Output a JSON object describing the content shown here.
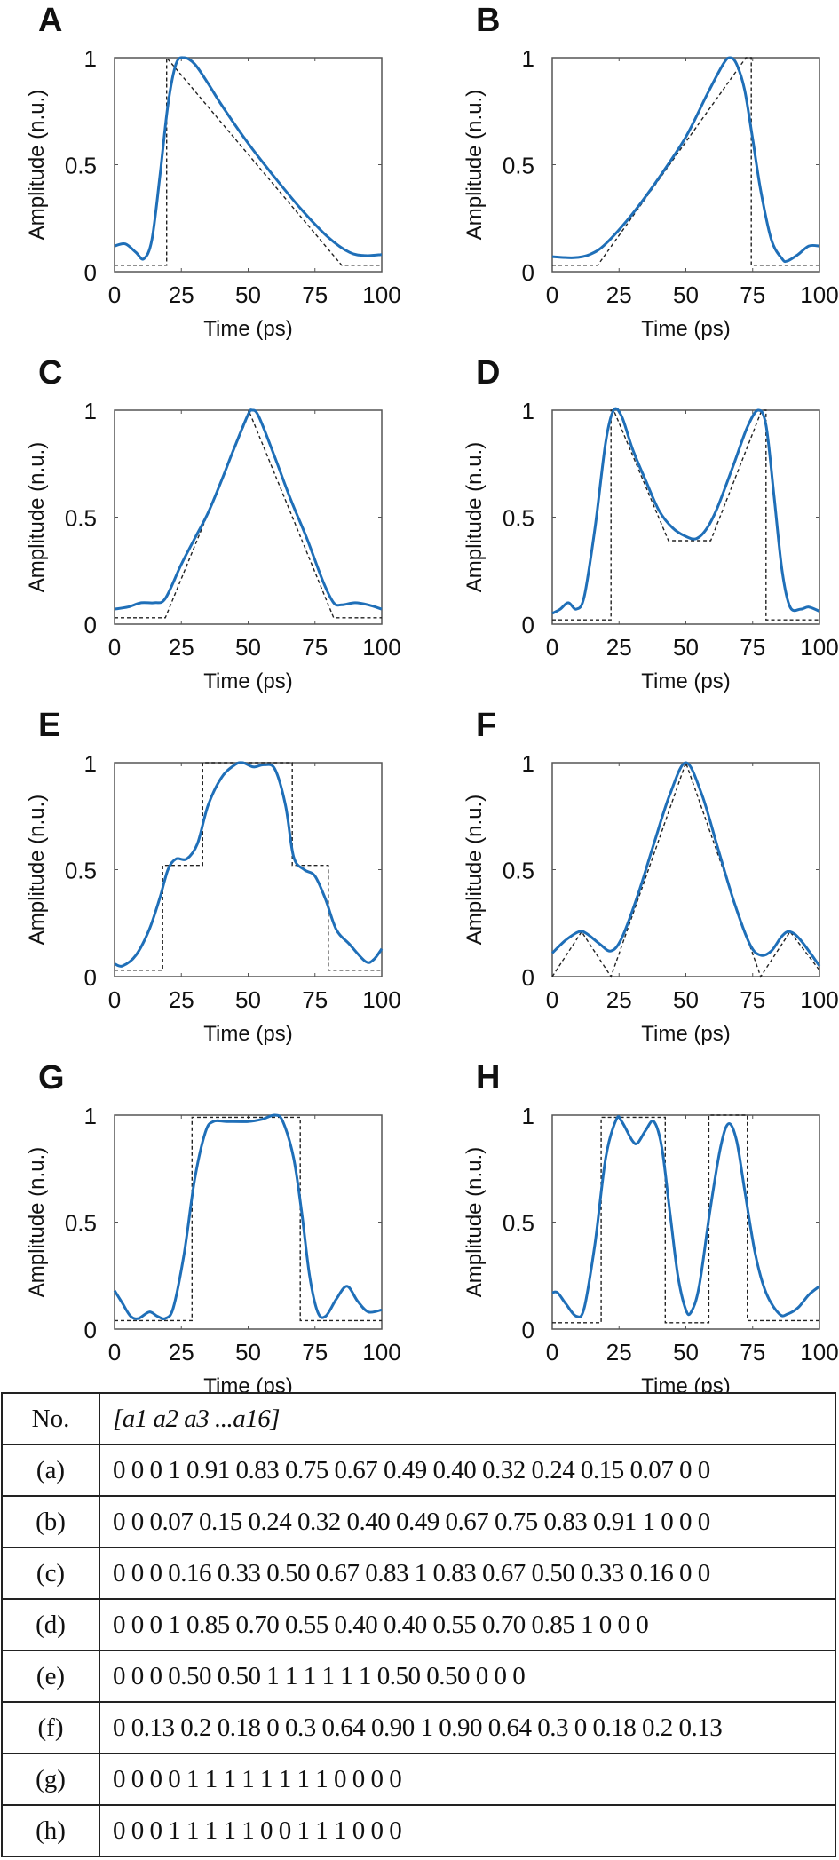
{
  "colors": {
    "measured": "#1f6fb8",
    "target": "#222222",
    "axis": "#555555"
  },
  "chart_data": [
    {
      "panel": "A",
      "type": "line",
      "xlabel": "Time (ps)",
      "ylabel": "Amplitude (n.u.)",
      "xlim": [
        0,
        100
      ],
      "ylim": [
        0,
        1
      ],
      "xticks": [
        "0",
        "25",
        "50",
        "75",
        "100"
      ],
      "yticks": [
        "0",
        "0.5",
        "1"
      ],
      "grid": false,
      "series": [
        {
          "style": "solid",
          "color": "#1f6fb8",
          "x": [
            0,
            4,
            8,
            11,
            14,
            17,
            20,
            23,
            26,
            30,
            35,
            40,
            50,
            60,
            70,
            80,
            88,
            94,
            100
          ],
          "y": [
            0.12,
            0.13,
            0.09,
            0.06,
            0.15,
            0.45,
            0.78,
            0.97,
            1.0,
            0.97,
            0.88,
            0.78,
            0.6,
            0.44,
            0.29,
            0.16,
            0.09,
            0.075,
            0.08
          ]
        },
        {
          "style": "dashed",
          "color": "#222222",
          "x": [
            0,
            19.5,
            19.5,
            85,
            100
          ],
          "y": [
            0.03,
            0.03,
            1,
            0.03,
            0.03
          ]
        }
      ]
    },
    {
      "panel": "B",
      "type": "line",
      "xlabel": "Time (ps)",
      "ylabel": "Amplitude (n.u.)",
      "xlim": [
        0,
        100
      ],
      "ylim": [
        0,
        1
      ],
      "xticks": [
        "0",
        "25",
        "50",
        "75",
        "100"
      ],
      "yticks": [
        "0",
        "0.5",
        "1"
      ],
      "grid": false,
      "series": [
        {
          "style": "solid",
          "color": "#1f6fb8",
          "x": [
            0,
            8,
            14,
            20,
            30,
            40,
            50,
            58,
            64,
            66.5,
            69,
            72,
            75,
            78,
            82,
            86,
            88,
            92,
            96,
            100
          ],
          "y": [
            0.07,
            0.065,
            0.08,
            0.13,
            0.27,
            0.44,
            0.63,
            0.83,
            0.97,
            1.0,
            0.97,
            0.85,
            0.62,
            0.38,
            0.15,
            0.06,
            0.05,
            0.08,
            0.12,
            0.12
          ]
        },
        {
          "style": "dashed",
          "color": "#222222",
          "x": [
            0,
            17,
            72.5,
            74.5,
            74.5,
            100
          ],
          "y": [
            0.03,
            0.03,
            1,
            1,
            0.03,
            0.03
          ]
        }
      ]
    },
    {
      "panel": "C",
      "type": "line",
      "xlabel": "Time (ps)",
      "ylabel": "Amplitude (n.u.)",
      "xlim": [
        0,
        100
      ],
      "ylim": [
        0,
        1
      ],
      "xticks": [
        "0",
        "25",
        "50",
        "75",
        "100"
      ],
      "yticks": [
        "0",
        "0.5",
        "1"
      ],
      "grid": false,
      "series": [
        {
          "style": "solid",
          "color": "#1f6fb8",
          "x": [
            0,
            5,
            10,
            15,
            19,
            25,
            30,
            35,
            40,
            45,
            50,
            51.5,
            54,
            60,
            66,
            72,
            78,
            82,
            85,
            90,
            95,
            100
          ],
          "y": [
            0.07,
            0.08,
            0.1,
            0.1,
            0.12,
            0.28,
            0.4,
            0.52,
            0.67,
            0.83,
            0.98,
            1.0,
            0.97,
            0.78,
            0.58,
            0.4,
            0.2,
            0.1,
            0.09,
            0.1,
            0.09,
            0.07
          ]
        },
        {
          "style": "dashed",
          "color": "#222222",
          "x": [
            0,
            19,
            50.5,
            82,
            100
          ],
          "y": [
            0.03,
            0.03,
            0.99,
            0.03,
            0.03
          ]
        }
      ]
    },
    {
      "panel": "D",
      "type": "line",
      "xlabel": "Time (ps)",
      "ylabel": "Amplitude (n.u.)",
      "xlim": [
        0,
        100
      ],
      "ylim": [
        0,
        1
      ],
      "xticks": [
        "0",
        "25",
        "50",
        "75",
        "100"
      ],
      "yticks": [
        "0",
        "0.5",
        "1"
      ],
      "grid": false,
      "series": [
        {
          "style": "solid",
          "color": "#1f6fb8",
          "x": [
            0,
            3,
            6,
            9,
            12,
            16,
            20,
            23,
            26,
            30,
            35,
            40,
            45,
            50,
            54,
            58,
            62,
            68,
            73,
            77,
            80,
            83,
            86,
            89,
            93,
            96,
            100
          ],
          "y": [
            0.05,
            0.07,
            0.1,
            0.07,
            0.13,
            0.45,
            0.85,
            1.0,
            0.97,
            0.82,
            0.67,
            0.53,
            0.45,
            0.41,
            0.4,
            0.45,
            0.55,
            0.75,
            0.92,
            1.0,
            0.93,
            0.6,
            0.25,
            0.08,
            0.07,
            0.08,
            0.06
          ]
        },
        {
          "style": "dashed",
          "color": "#222222",
          "x": [
            0,
            22,
            22,
            23,
            43.5,
            59.3,
            78.4,
            80,
            80,
            100
          ],
          "y": [
            0.02,
            0.02,
            1,
            1,
            0.39,
            0.39,
            1,
            1,
            0.02,
            0.02
          ]
        }
      ]
    },
    {
      "panel": "E",
      "type": "line",
      "xlabel": "Time (ps)",
      "ylabel": "Amplitude (n.u.)",
      "xlim": [
        0,
        100
      ],
      "ylim": [
        0,
        1
      ],
      "xticks": [
        "0",
        "25",
        "50",
        "75",
        "100"
      ],
      "yticks": [
        "0",
        "0.5",
        "1"
      ],
      "grid": false,
      "series": [
        {
          "style": "solid",
          "color": "#1f6fb8",
          "x": [
            0,
            3,
            8,
            13,
            17,
            20,
            23,
            27,
            31,
            35,
            40,
            45,
            48,
            52,
            56,
            60,
            64,
            67,
            71,
            75,
            79,
            83,
            88,
            94,
            97,
            100
          ],
          "y": [
            0.06,
            0.05,
            0.1,
            0.22,
            0.37,
            0.5,
            0.55,
            0.55,
            0.62,
            0.8,
            0.93,
            0.99,
            1.0,
            0.98,
            0.99,
            0.97,
            0.8,
            0.56,
            0.5,
            0.47,
            0.36,
            0.22,
            0.15,
            0.07,
            0.08,
            0.13
          ]
        },
        {
          "style": "dashed",
          "color": "#222222",
          "x": [
            0,
            18,
            18,
            33,
            33,
            66.5,
            66.5,
            80,
            80,
            100
          ],
          "y": [
            0.03,
            0.03,
            0.52,
            0.52,
            1,
            1,
            0.52,
            0.52,
            0.03,
            0.03
          ]
        }
      ]
    },
    {
      "panel": "F",
      "type": "line",
      "xlabel": "Time (ps)",
      "ylabel": "Amplitude (n.u.)",
      "xlim": [
        0,
        100
      ],
      "ylim": [
        0,
        1
      ],
      "xticks": [
        "0",
        "25",
        "50",
        "75",
        "100"
      ],
      "yticks": [
        "0",
        "0.5",
        "1"
      ],
      "grid": false,
      "series": [
        {
          "style": "solid",
          "color": "#1f6fb8",
          "x": [
            0,
            5,
            10,
            13,
            18,
            22,
            26,
            32,
            38,
            44,
            50,
            56,
            62,
            68,
            74,
            78,
            82,
            86,
            89,
            93,
            100
          ],
          "y": [
            0.11,
            0.17,
            0.21,
            0.2,
            0.15,
            0.12,
            0.18,
            0.38,
            0.62,
            0.85,
            1.0,
            0.85,
            0.6,
            0.35,
            0.15,
            0.1,
            0.12,
            0.19,
            0.21,
            0.17,
            0.05
          ]
        },
        {
          "style": "dashed",
          "color": "#222222",
          "x": [
            0,
            11,
            22,
            50,
            78,
            89,
            100
          ],
          "y": [
            0,
            0.21,
            0,
            1,
            0,
            0.21,
            0.03
          ]
        }
      ]
    },
    {
      "panel": "G",
      "type": "line",
      "xlabel": "Time (ps)",
      "ylabel": "Amplitude (n.u.)",
      "xlim": [
        0,
        100
      ],
      "ylim": [
        0,
        1
      ],
      "xticks": [
        "0",
        "25",
        "50",
        "75",
        "100"
      ],
      "yticks": [
        "0",
        "0.5",
        "1"
      ],
      "grid": false,
      "series": [
        {
          "style": "solid",
          "color": "#1f6fb8",
          "x": [
            0,
            3,
            6,
            9,
            13,
            16,
            19,
            22,
            26,
            30,
            34,
            37,
            42,
            50,
            55,
            60,
            63,
            67,
            70,
            73,
            76,
            79,
            83,
            87,
            91,
            95,
            100
          ],
          "y": [
            0.18,
            0.12,
            0.06,
            0.05,
            0.08,
            0.06,
            0.05,
            0.1,
            0.35,
            0.7,
            0.92,
            0.97,
            0.97,
            0.97,
            0.98,
            1.0,
            0.97,
            0.8,
            0.55,
            0.25,
            0.08,
            0.06,
            0.14,
            0.2,
            0.13,
            0.08,
            0.09
          ]
        },
        {
          "style": "dashed",
          "color": "#222222",
          "x": [
            0,
            29,
            29,
            69.5,
            69.5,
            100
          ],
          "y": [
            0.04,
            0.04,
            0.99,
            0.99,
            0.04,
            0.04
          ]
        }
      ]
    },
    {
      "panel": "H",
      "type": "line",
      "xlabel": "Time (ps)",
      "ylabel": "Amplitude (n.u.)",
      "xlim": [
        0,
        100
      ],
      "ylim": [
        0,
        1
      ],
      "xticks": [
        "0",
        "25",
        "50",
        "75",
        "100"
      ],
      "yticks": [
        "0",
        "0.5",
        "1"
      ],
      "grid": false,
      "series": [
        {
          "style": "solid",
          "color": "#1f6fb8",
          "x": [
            0,
            2,
            5,
            9,
            12,
            16,
            20,
            24,
            26,
            30,
            32,
            35,
            38,
            41,
            44,
            47,
            50,
            52,
            55,
            59,
            63,
            66,
            69,
            72,
            76,
            80,
            85,
            88,
            92,
            96,
            100
          ],
          "y": [
            0.17,
            0.17,
            0.12,
            0.06,
            0.1,
            0.4,
            0.8,
            0.98,
            0.97,
            0.88,
            0.87,
            0.93,
            0.97,
            0.85,
            0.55,
            0.25,
            0.09,
            0.08,
            0.2,
            0.55,
            0.85,
            0.96,
            0.88,
            0.65,
            0.35,
            0.17,
            0.07,
            0.07,
            0.1,
            0.16,
            0.2
          ]
        },
        {
          "style": "dashed",
          "color": "#222222",
          "x": [
            0,
            18.3,
            18.3,
            42.3,
            42.3,
            58.6,
            58.6,
            73,
            73,
            100
          ],
          "y": [
            0.03,
            0.03,
            0.99,
            0.99,
            0.03,
            0.03,
            1,
            1,
            0.04,
            0.04
          ]
        }
      ]
    }
  ],
  "table": {
    "header": {
      "no": "No.",
      "values": "[a1 a2 a3 ...a16]"
    },
    "rows": [
      {
        "no": "(a)",
        "values": "0 0 0 1 0.91 0.83 0.75 0.67 0.49 0.40 0.32 0.24 0.15 0.07 0 0"
      },
      {
        "no": "(b)",
        "values": "0 0 0.07 0.15 0.24 0.32 0.40 0.49 0.67 0.75 0.83 0.91 1 0 0 0"
      },
      {
        "no": "(c)",
        "values": "0 0 0 0.16 0.33 0.50 0.67 0.83 1 0.83 0.67 0.50 0.33 0.16 0 0"
      },
      {
        "no": "(d)",
        "values": "0 0 0 1 0.85 0.70 0.55 0.40 0.40 0.55 0.70 0.85 1 0 0 0"
      },
      {
        "no": "(e)",
        "values": "0 0 0 0.50 0.50 1 1 1 1 1 1 0.50 0.50 0 0 0"
      },
      {
        "no": "(f)",
        "values": "0 0.13 0.2 0.18 0 0.3 0.64 0.90 1 0.90 0.64 0.3 0 0.18 0.2 0.13"
      },
      {
        "no": "(g)",
        "values": "0 0 0 0 1 1 1 1 1 1 1 1 0 0 0 0"
      },
      {
        "no": "(h)",
        "values": "0 0 0 1 1 1 1 1 0 0 1 1 1 0 0 0"
      }
    ]
  }
}
